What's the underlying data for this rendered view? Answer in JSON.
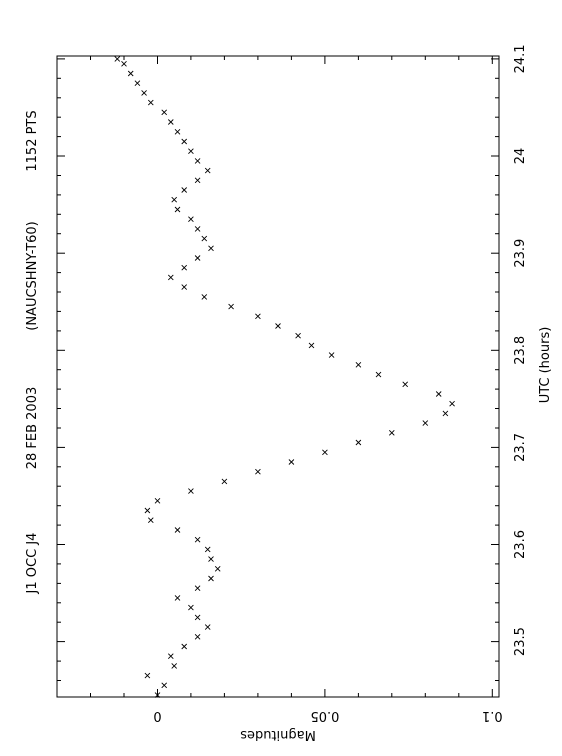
{
  "chart_data": {
    "type": "scatter",
    "header": {
      "object": "J1 OCC J4",
      "date": "28 FEB 2003",
      "observatory": "(NAUCSHNY-T60)",
      "points": "1152 PTS"
    },
    "xlabel": "UTC (hours)",
    "ylabel": "Magnitudes",
    "xlim": [
      23.443,
      24.103
    ],
    "ylim": [
      -0.03,
      0.102
    ],
    "y_inverted": true,
    "x_ticks": [
      "23.5",
      "23.6",
      "23.7",
      "23.8",
      "23.9",
      "24",
      "24.1"
    ],
    "y_ticks": [
      "0",
      "0.05",
      "0.1"
    ],
    "marker": "x",
    "marker_color": "#000000",
    "series": [
      {
        "values": [
          [
            23.445,
            0.0
          ],
          [
            23.455,
            0.002
          ],
          [
            23.465,
            -0.003
          ],
          [
            23.475,
            0.005
          ],
          [
            23.485,
            0.004
          ],
          [
            23.495,
            0.008
          ],
          [
            23.505,
            0.012
          ],
          [
            23.515,
            0.015
          ],
          [
            23.525,
            0.012
          ],
          [
            23.535,
            0.01
          ],
          [
            23.545,
            0.006
          ],
          [
            23.555,
            0.012
          ],
          [
            23.565,
            0.016
          ],
          [
            23.575,
            0.018
          ],
          [
            23.585,
            0.016
          ],
          [
            23.595,
            0.015
          ],
          [
            23.605,
            0.012
          ],
          [
            23.615,
            0.006
          ],
          [
            23.625,
            -0.002
          ],
          [
            23.635,
            -0.003
          ],
          [
            23.645,
            0.0
          ],
          [
            23.655,
            0.01
          ],
          [
            23.665,
            0.02
          ],
          [
            23.675,
            0.03
          ],
          [
            23.685,
            0.04
          ],
          [
            23.695,
            0.05
          ],
          [
            23.705,
            0.06
          ],
          [
            23.715,
            0.07
          ],
          [
            23.725,
            0.08
          ],
          [
            23.735,
            0.086
          ],
          [
            23.745,
            0.088
          ],
          [
            23.755,
            0.084
          ],
          [
            23.765,
            0.074
          ],
          [
            23.775,
            0.066
          ],
          [
            23.785,
            0.06
          ],
          [
            23.795,
            0.052
          ],
          [
            23.805,
            0.046
          ],
          [
            23.815,
            0.042
          ],
          [
            23.825,
            0.036
          ],
          [
            23.835,
            0.03
          ],
          [
            23.845,
            0.022
          ],
          [
            23.855,
            0.014
          ],
          [
            23.865,
            0.008
          ],
          [
            23.875,
            0.004
          ],
          [
            23.885,
            0.008
          ],
          [
            23.895,
            0.012
          ],
          [
            23.905,
            0.016
          ],
          [
            23.915,
            0.014
          ],
          [
            23.925,
            0.012
          ],
          [
            23.935,
            0.01
          ],
          [
            23.945,
            0.006
          ],
          [
            23.955,
            0.005
          ],
          [
            23.965,
            0.008
          ],
          [
            23.975,
            0.012
          ],
          [
            23.985,
            0.015
          ],
          [
            23.995,
            0.012
          ],
          [
            24.005,
            0.01
          ],
          [
            24.015,
            0.008
          ],
          [
            24.025,
            0.006
          ],
          [
            24.035,
            0.004
          ],
          [
            24.045,
            0.002
          ],
          [
            24.055,
            -0.002
          ],
          [
            24.065,
            -0.004
          ],
          [
            24.075,
            -0.006
          ],
          [
            24.085,
            -0.008
          ],
          [
            24.095,
            -0.01
          ],
          [
            24.1,
            -0.012
          ]
        ]
      }
    ]
  }
}
